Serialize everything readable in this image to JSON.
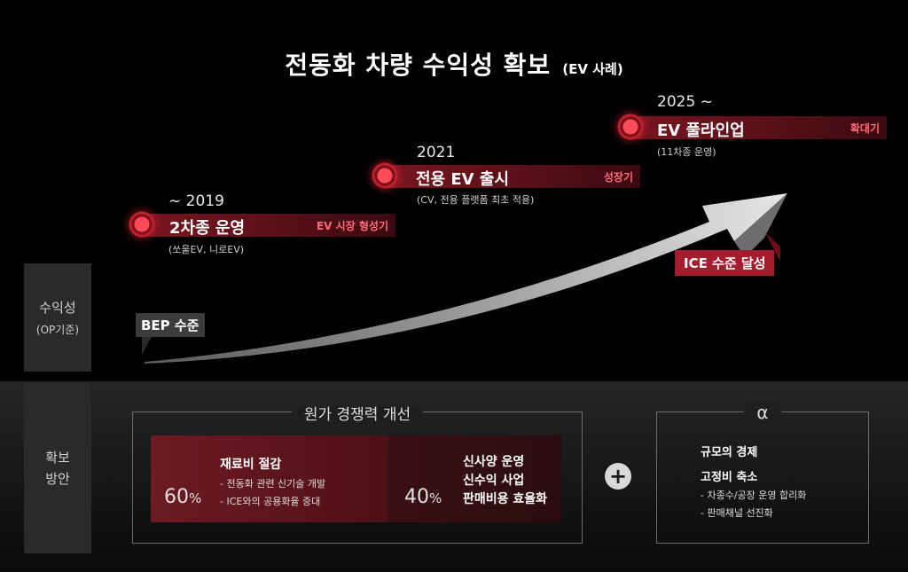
{
  "title": {
    "main": "전동화 차량 수익성 확보",
    "sub": "(EV 사례)"
  },
  "left_labels": {
    "profit_line1": "수익성",
    "profit_line2": "(OP기준)",
    "secure_line1": "확보",
    "secure_line2": "방안"
  },
  "stages": [
    {
      "year": "~ 2019",
      "name": "2차종 운영",
      "tag": "EV 시장 형성기",
      "note": "(쏘울EV, 니로EV)"
    },
    {
      "year": "2021",
      "name": "전용 EV 출시",
      "tag": "성장기",
      "note": "(CV, 전용 플랫폼 최초 적용)"
    },
    {
      "year": "2025 ~",
      "name": "EV 풀라인업",
      "tag": "확대기",
      "note": "(11차종 운영)"
    }
  ],
  "bep_label": "BEP 수준",
  "ice_label": "ICE 수준 달성",
  "cost": {
    "heading": "원가 경쟁력 개선",
    "material": {
      "percent": "60",
      "unit": "%",
      "title": "재료비 절감",
      "bullets": [
        "- 전동화 관련 신기술 개발",
        "- ICE와의 공용화율 증대"
      ]
    },
    "other": {
      "percent": "40",
      "unit": "%",
      "items": [
        "신사양 운영",
        "신수익 사업",
        "판매비용 효율화"
      ]
    }
  },
  "plus_symbol": "+",
  "alpha": {
    "heading": "α",
    "scale": "규모의 경제",
    "fixed_title": "고정비 축소",
    "bullets": [
      "- 차종수/공장 운영 합리화",
      "- 판매채널 선진화"
    ]
  },
  "colors": {
    "accent_red": "#a51c2c",
    "tag_red": "#ff6b7a",
    "bar_red": "#7a1520"
  }
}
